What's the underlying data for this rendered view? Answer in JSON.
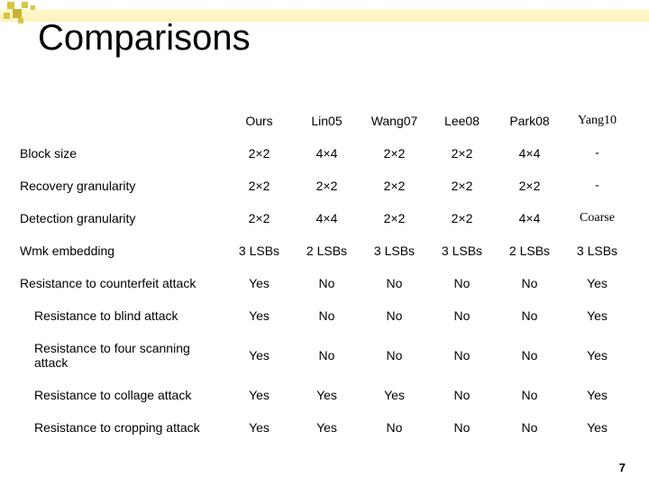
{
  "title": "Comparisons",
  "page_number": "7",
  "columns": [
    {
      "label": "",
      "serif": false
    },
    {
      "label": "Ours",
      "serif": false
    },
    {
      "label": "Lin05",
      "serif": false
    },
    {
      "label": "Wang07",
      "serif": false
    },
    {
      "label": "Lee08",
      "serif": false
    },
    {
      "label": "Park08",
      "serif": false
    },
    {
      "label": "Yang10",
      "serif": true
    }
  ],
  "rows": [
    {
      "label": "Block size",
      "indent": false,
      "cells": [
        "2×2",
        "4×4",
        "2×2",
        "2×2",
        "4×4",
        {
          "v": "-",
          "serif": true
        }
      ]
    },
    {
      "label": "Recovery granularity",
      "indent": false,
      "cells": [
        "2×2",
        "2×2",
        "2×2",
        "2×2",
        "2×2",
        {
          "v": "-",
          "serif": true
        }
      ]
    },
    {
      "label": "Detection granularity",
      "indent": false,
      "cells": [
        "2×2",
        "4×4",
        "2×2",
        "2×2",
        "4×4",
        {
          "v": "Coarse",
          "serif": true
        }
      ]
    },
    {
      "label": "Wmk embedding",
      "indent": false,
      "cells": [
        "3 LSBs",
        "2 LSBs",
        "3 LSBs",
        "3 LSBs",
        "2 LSBs",
        "3 LSBs"
      ]
    },
    {
      "label": "Resistance to counterfeit attack",
      "indent": false,
      "cells": [
        "Yes",
        "No",
        "No",
        "No",
        "No",
        "Yes"
      ]
    },
    {
      "label": "Resistance to blind attack",
      "indent": true,
      "cells": [
        "Yes",
        "No",
        "No",
        "No",
        "No",
        "Yes"
      ]
    },
    {
      "label": "Resistance to four scanning attack",
      "indent": true,
      "cells": [
        "Yes",
        "No",
        "No",
        "No",
        "No",
        "Yes"
      ]
    },
    {
      "label": "Resistance to collage attack",
      "indent": true,
      "cells": [
        "Yes",
        "Yes",
        "Yes",
        "No",
        "No",
        "Yes"
      ]
    },
    {
      "label": "Resistance to cropping attack",
      "indent": true,
      "cells": [
        "Yes",
        "Yes",
        "No",
        "No",
        "No",
        "Yes"
      ]
    }
  ]
}
